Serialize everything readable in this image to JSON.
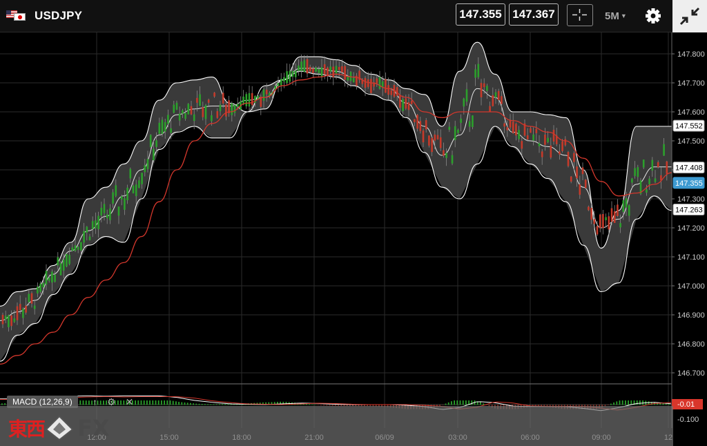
{
  "header": {
    "symbol": "USDJPY",
    "bid": "147.355",
    "ask": "147.367",
    "interval": "5M"
  },
  "icons": {
    "flags": "us-jp-flags-icon",
    "crosshair": "crosshair-icon",
    "interval_caret": "caret-down-icon",
    "settings": "gear-icon",
    "exit_fullscreen": "exit-fullscreen-icon",
    "macd_up": "arrow-up-icon",
    "macd_settings": "gear-icon",
    "macd_close": "close-icon"
  },
  "price_axis": {
    "ticks": [
      "147.800",
      "147.700",
      "147.600",
      "147.500",
      "147.400",
      "147.300",
      "147.200",
      "147.100",
      "147.000",
      "146.900",
      "146.800",
      "146.700"
    ],
    "labels": {
      "upper_band": "147.552",
      "middle_band": "147.408",
      "current": "147.355",
      "lower_band": "147.263"
    }
  },
  "time_axis": {
    "ticks": [
      "12:00",
      "15:00",
      "18:00",
      "21:00",
      "06/09",
      "03:00",
      "06:00",
      "09:00",
      "12"
    ]
  },
  "macd": {
    "label": "MACD (12,26,9)",
    "value_label": "-0.01",
    "tick": "-0.100"
  },
  "logo": {
    "kanji": "東西",
    "fx": "FX"
  },
  "colors": {
    "background": "#000000",
    "candle_up": "#2ca02c",
    "candle_down": "#c63a2a",
    "band": "#ffffff",
    "band_fill": "#3a3a3a",
    "ma": "#d4372c",
    "current_price": "#3d9ad1",
    "logo_red": "#e02020"
  },
  "chart_data": {
    "type": "candlestick",
    "symbol": "USDJPY",
    "timeframe": "5M",
    "ylim": [
      146.62,
      147.86
    ],
    "x_ticks": [
      "12:00",
      "15:00",
      "18:00",
      "21:00",
      "06/09",
      "03:00",
      "06:00",
      "09:00",
      "12"
    ],
    "upper_band": [
      146.93,
      146.98,
      146.99,
      147.07,
      147.15,
      147.3,
      147.34,
      147.42,
      147.5,
      147.64,
      147.7,
      147.71,
      147.72,
      147.63,
      147.6,
      147.61,
      147.71,
      147.79,
      147.79,
      147.78,
      147.76,
      147.73,
      147.71,
      147.68,
      147.66,
      147.55,
      147.74,
      147.84,
      147.73,
      147.6,
      147.6,
      147.59,
      147.58,
      147.4,
      147.13,
      147.26,
      147.55,
      147.55,
      147.55
    ],
    "middle_band": [
      146.88,
      146.91,
      146.95,
      147.04,
      147.12,
      147.19,
      147.24,
      147.31,
      147.4,
      147.52,
      147.59,
      147.61,
      147.62,
      147.62,
      147.64,
      147.65,
      147.71,
      147.75,
      147.75,
      147.74,
      147.72,
      147.7,
      147.68,
      147.63,
      147.55,
      147.45,
      147.52,
      147.68,
      147.65,
      147.53,
      147.5,
      147.48,
      147.45,
      147.34,
      147.2,
      147.23,
      147.35,
      147.41,
      147.41
    ],
    "lower_band": [
      146.74,
      146.83,
      146.87,
      146.97,
      147.04,
      147.14,
      147.17,
      147.15,
      147.3,
      147.47,
      147.53,
      147.55,
      147.51,
      147.51,
      147.6,
      147.69,
      147.71,
      147.74,
      147.73,
      147.72,
      147.69,
      147.66,
      147.64,
      147.58,
      147.46,
      147.34,
      147.3,
      147.42,
      147.55,
      147.48,
      147.42,
      147.37,
      147.29,
      147.14,
      146.98,
      147.01,
      147.23,
      147.31,
      147.26
    ],
    "moving_average": [
      146.73,
      146.76,
      146.8,
      146.84,
      146.9,
      146.96,
      147.02,
      147.08,
      147.17,
      147.29,
      147.4,
      147.5,
      147.56,
      147.6,
      147.63,
      147.65,
      147.69,
      147.71,
      147.72,
      147.73,
      147.72,
      147.7,
      147.68,
      147.65,
      147.6,
      147.58,
      147.6,
      147.6,
      147.6,
      147.57,
      147.55,
      147.53,
      147.5,
      147.44,
      147.36,
      147.31,
      147.32,
      147.35,
      147.39
    ],
    "current_price": 147.355
  }
}
